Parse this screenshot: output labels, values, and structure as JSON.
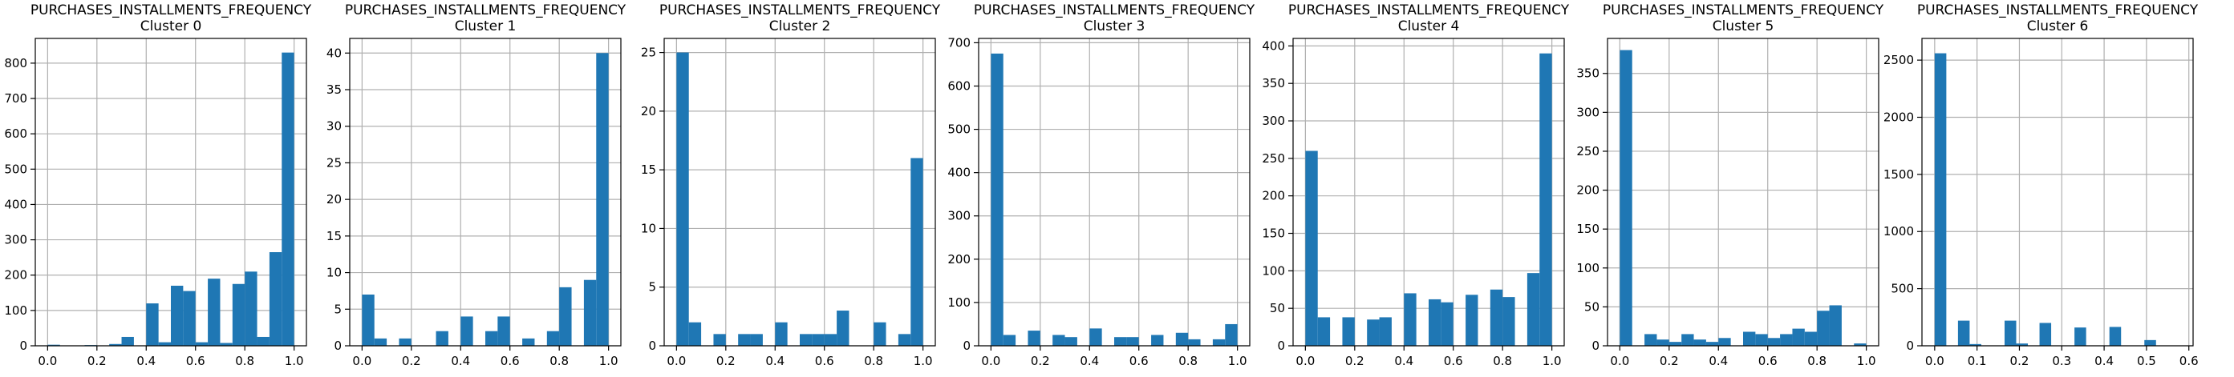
{
  "chart_data": [
    {
      "type": "histogram",
      "title": "PURCHASES_INSTALLMENTS_FREQUENCY",
      "subtitle": "Cluster 0",
      "color": "#1f77b4",
      "grid": true,
      "bins": [
        0,
        0.05,
        0.1,
        0.15,
        0.2,
        0.25,
        0.3,
        0.35,
        0.4,
        0.45,
        0.5,
        0.55,
        0.6,
        0.65,
        0.7,
        0.75,
        0.8,
        0.85,
        0.9,
        0.95,
        1
      ],
      "values": [
        3,
        0,
        0,
        2,
        0,
        5,
        25,
        0,
        120,
        10,
        170,
        155,
        10,
        190,
        8,
        175,
        210,
        25,
        265,
        830
      ],
      "xlim": [
        -0.05,
        1.05
      ],
      "ylim": [
        0,
        870
      ],
      "xticks": [
        {
          "value": 0,
          "label": "0.0"
        },
        {
          "value": 0.2,
          "label": "0.2"
        },
        {
          "value": 0.4,
          "label": "0.4"
        },
        {
          "value": 0.6,
          "label": "0.6"
        },
        {
          "value": 0.8,
          "label": "0.8"
        },
        {
          "value": 1,
          "label": "1.0"
        }
      ],
      "yticks": [
        0,
        100,
        200,
        300,
        400,
        500,
        600,
        700,
        800
      ]
    },
    {
      "type": "histogram",
      "title": "PURCHASES_INSTALLMENTS_FREQUENCY",
      "subtitle": "Cluster 1",
      "color": "#1f77b4",
      "grid": true,
      "bins": [
        0,
        0.05,
        0.1,
        0.15,
        0.2,
        0.25,
        0.3,
        0.35,
        0.4,
        0.45,
        0.5,
        0.55,
        0.6,
        0.65,
        0.7,
        0.75,
        0.8,
        0.85,
        0.9,
        0.95,
        1
      ],
      "values": [
        7,
        1,
        0,
        1,
        0,
        0,
        2,
        0,
        4,
        0,
        2,
        4,
        0,
        1,
        0,
        2,
        8,
        0,
        9,
        40
      ],
      "xlim": [
        -0.05,
        1.05
      ],
      "ylim": [
        0,
        42
      ],
      "xticks": [
        {
          "value": 0,
          "label": "0.0"
        },
        {
          "value": 0.2,
          "label": "0.2"
        },
        {
          "value": 0.4,
          "label": "0.4"
        },
        {
          "value": 0.6,
          "label": "0.6"
        },
        {
          "value": 0.8,
          "label": "0.8"
        },
        {
          "value": 1,
          "label": "1.0"
        }
      ],
      "yticks": [
        0,
        5,
        10,
        15,
        20,
        25,
        30,
        35,
        40
      ]
    },
    {
      "type": "histogram",
      "title": "PURCHASES_INSTALLMENTS_FREQUENCY",
      "subtitle": "Cluster 2",
      "color": "#1f77b4",
      "grid": true,
      "bins": [
        0,
        0.05,
        0.1,
        0.15,
        0.2,
        0.25,
        0.3,
        0.35,
        0.4,
        0.45,
        0.5,
        0.55,
        0.6,
        0.65,
        0.7,
        0.75,
        0.8,
        0.85,
        0.9,
        0.95,
        1
      ],
      "values": [
        25,
        2,
        0,
        1,
        0,
        1,
        1,
        0,
        2,
        0,
        1,
        1,
        1,
        3,
        0,
        0,
        2,
        0,
        1,
        16
      ],
      "xlim": [
        -0.05,
        1.05
      ],
      "ylim": [
        0,
        26.2
      ],
      "xticks": [
        {
          "value": 0,
          "label": "0.0"
        },
        {
          "value": 0.2,
          "label": "0.2"
        },
        {
          "value": 0.4,
          "label": "0.4"
        },
        {
          "value": 0.6,
          "label": "0.6"
        },
        {
          "value": 0.8,
          "label": "0.8"
        },
        {
          "value": 1,
          "label": "1.0"
        }
      ],
      "yticks": [
        0,
        5,
        10,
        15,
        20,
        25
      ]
    },
    {
      "type": "histogram",
      "title": "PURCHASES_INSTALLMENTS_FREQUENCY",
      "subtitle": "Cluster 3",
      "color": "#1f77b4",
      "grid": true,
      "bins": [
        0,
        0.05,
        0.1,
        0.15,
        0.2,
        0.25,
        0.3,
        0.35,
        0.4,
        0.45,
        0.5,
        0.55,
        0.6,
        0.65,
        0.7,
        0.75,
        0.8,
        0.85,
        0.9,
        0.95,
        1
      ],
      "values": [
        675,
        25,
        0,
        35,
        0,
        25,
        20,
        0,
        40,
        0,
        20,
        20,
        0,
        25,
        0,
        30,
        15,
        0,
        15,
        50
      ],
      "xlim": [
        -0.05,
        1.05
      ],
      "ylim": [
        0,
        710
      ],
      "xticks": [
        {
          "value": 0,
          "label": "0.0"
        },
        {
          "value": 0.2,
          "label": "0.2"
        },
        {
          "value": 0.4,
          "label": "0.4"
        },
        {
          "value": 0.6,
          "label": "0.6"
        },
        {
          "value": 0.8,
          "label": "0.8"
        },
        {
          "value": 1,
          "label": "1.0"
        }
      ],
      "yticks": [
        0,
        100,
        200,
        300,
        400,
        500,
        600,
        700
      ]
    },
    {
      "type": "histogram",
      "title": "PURCHASES_INSTALLMENTS_FREQUENCY",
      "subtitle": "Cluster 4",
      "color": "#1f77b4",
      "grid": true,
      "bins": [
        0,
        0.05,
        0.1,
        0.15,
        0.2,
        0.25,
        0.3,
        0.35,
        0.4,
        0.45,
        0.5,
        0.55,
        0.6,
        0.65,
        0.7,
        0.75,
        0.8,
        0.85,
        0.9,
        0.95,
        1
      ],
      "values": [
        260,
        38,
        0,
        38,
        0,
        35,
        38,
        0,
        70,
        0,
        62,
        58,
        0,
        68,
        0,
        75,
        65,
        0,
        97,
        390
      ],
      "xlim": [
        -0.05,
        1.05
      ],
      "ylim": [
        0,
        410
      ],
      "xticks": [
        {
          "value": 0,
          "label": "0.0"
        },
        {
          "value": 0.2,
          "label": "0.2"
        },
        {
          "value": 0.4,
          "label": "0.4"
        },
        {
          "value": 0.6,
          "label": "0.6"
        },
        {
          "value": 0.8,
          "label": "0.8"
        },
        {
          "value": 1,
          "label": "1.0"
        }
      ],
      "yticks": [
        0,
        50,
        100,
        150,
        200,
        250,
        300,
        350,
        400
      ]
    },
    {
      "type": "histogram",
      "title": "PURCHASES_INSTALLMENTS_FREQUENCY",
      "subtitle": "Cluster 5",
      "color": "#1f77b4",
      "grid": true,
      "bins": [
        0,
        0.05,
        0.1,
        0.15,
        0.2,
        0.25,
        0.3,
        0.35,
        0.4,
        0.45,
        0.5,
        0.55,
        0.6,
        0.65,
        0.7,
        0.75,
        0.8,
        0.85,
        0.9,
        0.95,
        1
      ],
      "values": [
        380,
        0,
        15,
        8,
        5,
        15,
        8,
        5,
        10,
        0,
        18,
        15,
        10,
        15,
        22,
        18,
        45,
        52,
        0,
        3
      ],
      "xlim": [
        -0.05,
        1.05
      ],
      "ylim": [
        0,
        395
      ],
      "xticks": [
        {
          "value": 0,
          "label": "0.0"
        },
        {
          "value": 0.2,
          "label": "0.2"
        },
        {
          "value": 0.4,
          "label": "0.4"
        },
        {
          "value": 0.6,
          "label": "0.6"
        },
        {
          "value": 0.8,
          "label": "0.8"
        },
        {
          "value": 1,
          "label": "1.0"
        }
      ],
      "yticks": [
        0,
        50,
        100,
        150,
        200,
        250,
        300,
        350
      ]
    },
    {
      "type": "histogram",
      "title": "PURCHASES_INSTALLMENTS_FREQUENCY",
      "subtitle": "Cluster 6",
      "color": "#1f77b4",
      "grid": true,
      "bins": [
        0,
        0.0275,
        0.055,
        0.0825,
        0.11,
        0.1375,
        0.165,
        0.1925,
        0.22,
        0.2475,
        0.275,
        0.3025,
        0.33,
        0.3575,
        0.385,
        0.4125,
        0.44,
        0.4675,
        0.495,
        0.5225,
        0.55
      ],
      "values": [
        2560,
        0,
        220,
        15,
        0,
        0,
        220,
        20,
        0,
        200,
        0,
        0,
        160,
        0,
        0,
        165,
        0,
        0,
        50,
        0
      ],
      "xlim": [
        -0.03,
        0.61
      ],
      "ylim": [
        0,
        2690
      ],
      "xticks": [
        {
          "value": 0,
          "label": "0.0"
        },
        {
          "value": 0.1,
          "label": "0.1"
        },
        {
          "value": 0.2,
          "label": "0.2"
        },
        {
          "value": 0.3,
          "label": "0.3"
        },
        {
          "value": 0.4,
          "label": "0.4"
        },
        {
          "value": 0.5,
          "label": "0.5"
        },
        {
          "value": 0.6,
          "label": "0.6"
        }
      ],
      "yticks": [
        0,
        500,
        1000,
        1500,
        2000,
        2500
      ]
    }
  ]
}
